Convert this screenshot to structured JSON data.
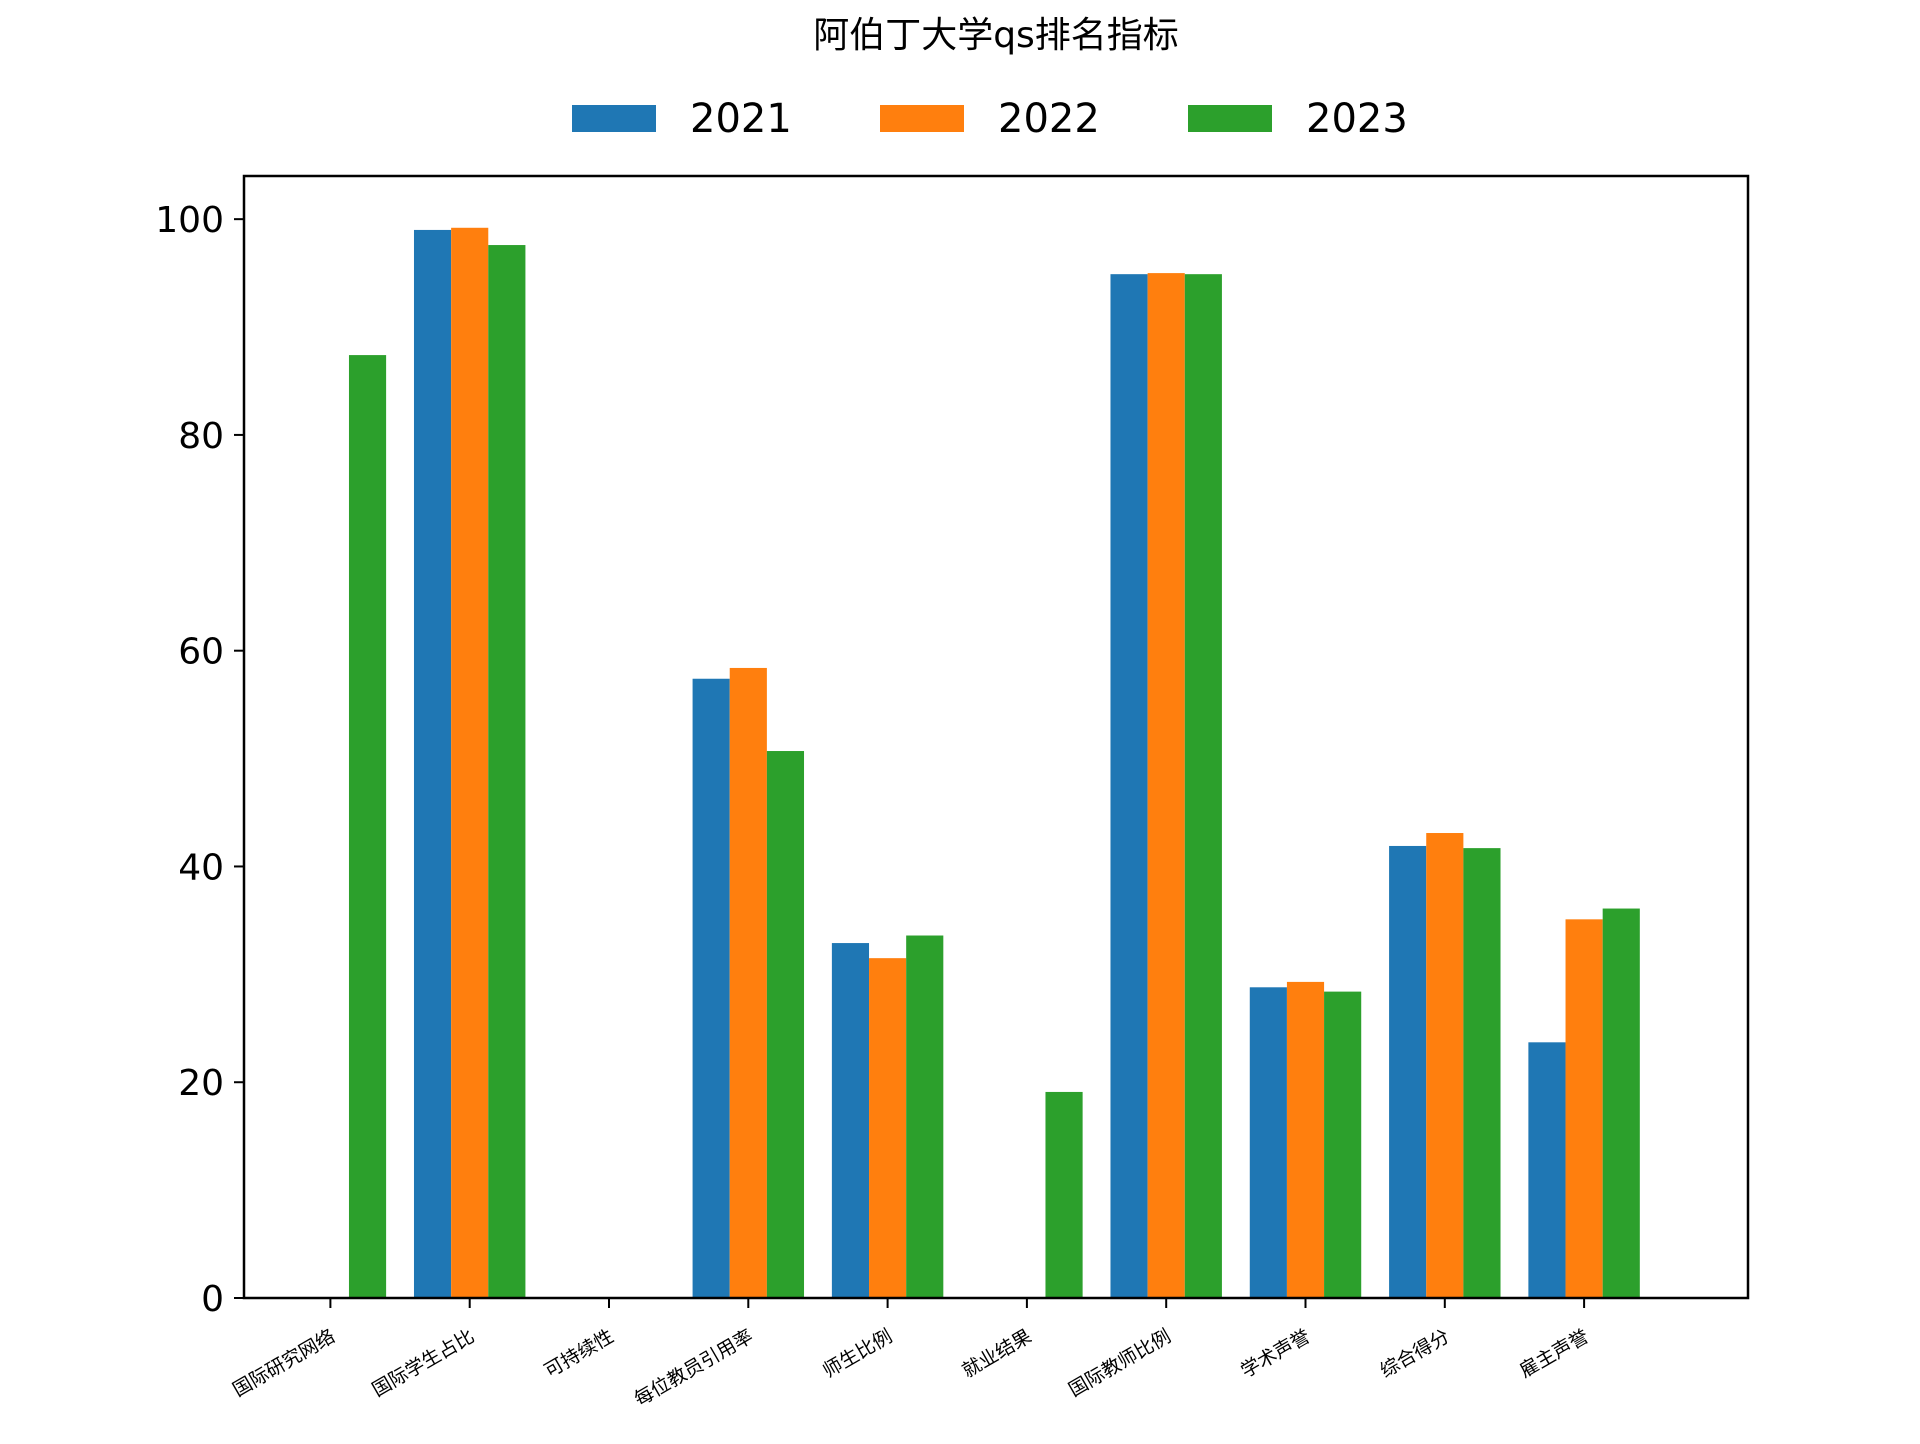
{
  "chart_data": {
    "type": "bar",
    "title": "阿伯丁大学qs排名指标",
    "xlabel": "",
    "ylabel": "",
    "ylim": [
      0,
      104
    ],
    "yticks": [
      0,
      20,
      40,
      60,
      80,
      100
    ],
    "legend_position": "top-center",
    "grid": false,
    "categories": [
      "国际研究网络",
      "国际学生占比",
      "可持续性",
      "每位教员引用率",
      "师生比例",
      "就业结果",
      "国际教师比例",
      "学术声誉",
      "综合得分",
      "雇主声誉"
    ],
    "series": [
      {
        "name": "2021",
        "color": "#1f77b4",
        "values": [
          0,
          99.0,
          0,
          57.4,
          32.9,
          0,
          94.9,
          28.8,
          41.9,
          23.7
        ]
      },
      {
        "name": "2022",
        "color": "#ff7f0e",
        "values": [
          0,
          99.2,
          0,
          58.4,
          31.5,
          0,
          95.0,
          29.3,
          43.1,
          35.1
        ]
      },
      {
        "name": "2023",
        "color": "#2ca02c",
        "values": [
          87.4,
          97.6,
          0,
          50.7,
          33.6,
          19.1,
          94.9,
          28.4,
          41.7,
          36.1
        ]
      }
    ]
  }
}
